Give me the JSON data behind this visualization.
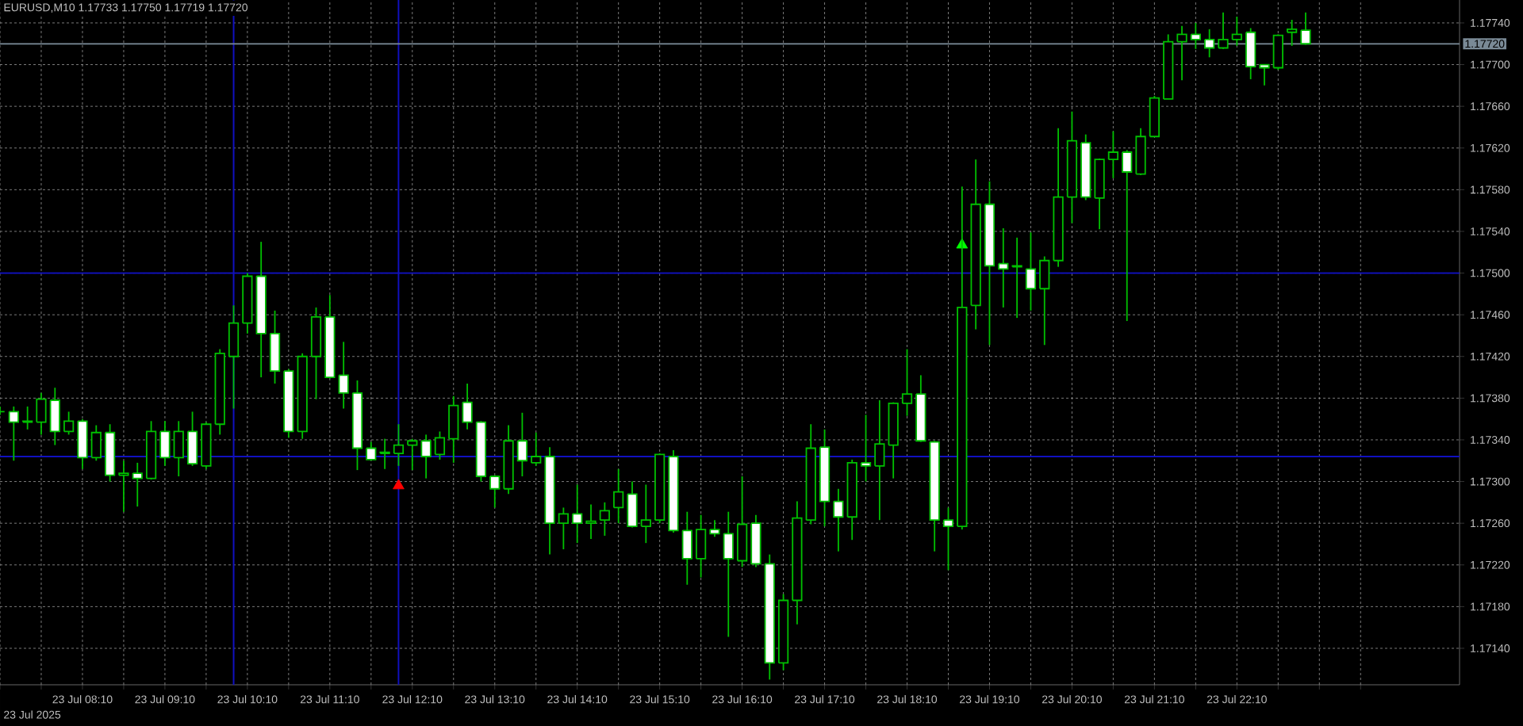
{
  "chart_data": {
    "type": "candlestick",
    "title": "EURUSD,M10  1.17733 1.17750 1.17719 1.17720",
    "color": "#00c000",
    "grid": true,
    "xlim": [
      "2025-07-23T07:10",
      "2025-07-24T00:52"
    ],
    "ylim": [
      1.17105,
      1.17762
    ],
    "x": [
      "2025-07-23T07:10",
      "2025-07-23T07:20",
      "2025-07-23T07:30",
      "2025-07-23T07:40",
      "2025-07-23T07:50",
      "2025-07-23T08:00",
      "2025-07-23T08:10",
      "2025-07-23T08:20",
      "2025-07-23T08:30",
      "2025-07-23T08:40",
      "2025-07-23T08:50",
      "2025-07-23T09:00",
      "2025-07-23T09:10",
      "2025-07-23T09:20",
      "2025-07-23T09:30",
      "2025-07-23T09:40",
      "2025-07-23T09:50",
      "2025-07-23T10:00",
      "2025-07-23T10:10",
      "2025-07-23T10:20",
      "2025-07-23T10:30",
      "2025-07-23T10:40",
      "2025-07-23T10:50",
      "2025-07-23T11:00",
      "2025-07-23T11:10",
      "2025-07-23T11:20",
      "2025-07-23T11:30",
      "2025-07-23T11:40",
      "2025-07-23T11:50",
      "2025-07-23T12:00",
      "2025-07-23T12:10",
      "2025-07-23T12:20",
      "2025-07-23T12:30",
      "2025-07-23T12:40",
      "2025-07-23T12:50",
      "2025-07-23T13:00",
      "2025-07-23T13:10",
      "2025-07-23T13:20",
      "2025-07-23T13:30",
      "2025-07-23T13:40",
      "2025-07-23T13:50",
      "2025-07-23T14:00",
      "2025-07-23T14:10",
      "2025-07-23T14:20",
      "2025-07-23T14:30",
      "2025-07-23T14:40",
      "2025-07-23T14:50",
      "2025-07-23T15:00",
      "2025-07-23T15:10",
      "2025-07-23T15:20",
      "2025-07-23T15:30",
      "2025-07-23T15:40",
      "2025-07-23T15:50",
      "2025-07-23T16:00",
      "2025-07-23T16:10",
      "2025-07-23T16:20",
      "2025-07-23T16:30",
      "2025-07-23T16:40",
      "2025-07-23T16:50",
      "2025-07-23T17:00",
      "2025-07-23T17:10",
      "2025-07-23T17:20",
      "2025-07-23T17:30",
      "2025-07-23T17:40",
      "2025-07-23T17:50",
      "2025-07-23T18:00",
      "2025-07-23T18:10",
      "2025-07-23T18:20",
      "2025-07-23T18:30",
      "2025-07-23T18:40",
      "2025-07-23T18:50",
      "2025-07-23T19:00",
      "2025-07-23T19:10",
      "2025-07-23T19:20",
      "2025-07-23T19:30",
      "2025-07-23T19:40",
      "2025-07-23T19:50",
      "2025-07-23T20:00",
      "2025-07-23T20:10",
      "2025-07-23T20:20",
      "2025-07-23T20:30",
      "2025-07-23T20:40",
      "2025-07-23T20:50",
      "2025-07-23T21:00",
      "2025-07-23T21:10",
      "2025-07-23T21:20",
      "2025-07-23T21:30",
      "2025-07-23T21:40",
      "2025-07-23T21:50",
      "2025-07-23T22:00",
      "2025-07-23T22:10",
      "2025-07-23T22:20",
      "2025-07-23T22:30",
      "2025-07-23T22:40",
      "2025-07-23T22:50",
      "2025-07-23T23:00"
    ],
    "ohlc": [
      [
        1.17367,
        1.17372,
        1.17364,
        1.17367
      ],
      [
        1.17367,
        1.17372,
        1.1732,
        1.17357
      ],
      [
        1.17357,
        1.17372,
        1.1735,
        1.17358
      ],
      [
        1.17357,
        1.17385,
        1.17345,
        1.17379
      ],
      [
        1.17378,
        1.1739,
        1.17335,
        1.17348
      ],
      [
        1.17348,
        1.17367,
        1.17345,
        1.17358
      ],
      [
        1.17358,
        1.1736,
        1.17312,
        1.17323
      ],
      [
        1.17323,
        1.17354,
        1.1732,
        1.17347
      ],
      [
        1.17347,
        1.17355,
        1.173,
        1.17306
      ],
      [
        1.17306,
        1.1732,
        1.17271,
        1.17308
      ],
      [
        1.17308,
        1.17318,
        1.17276,
        1.17303
      ],
      [
        1.17303,
        1.17358,
        1.17302,
        1.17348
      ],
      [
        1.17348,
        1.17358,
        1.17315,
        1.17323
      ],
      [
        1.17323,
        1.17358,
        1.17305,
        1.17348
      ],
      [
        1.17348,
        1.17367,
        1.17315,
        1.17317
      ],
      [
        1.17315,
        1.17357,
        1.17312,
        1.17355
      ],
      [
        1.17355,
        1.17427,
        1.17345,
        1.17423
      ],
      [
        1.1742,
        1.17469,
        1.1737,
        1.17452
      ],
      [
        1.17452,
        1.175,
        1.17442,
        1.17497
      ],
      [
        1.17497,
        1.1753,
        1.174,
        1.17442
      ],
      [
        1.17442,
        1.17464,
        1.17394,
        1.17406
      ],
      [
        1.17406,
        1.17408,
        1.17342,
        1.17348
      ],
      [
        1.17348,
        1.17423,
        1.17341,
        1.1742
      ],
      [
        1.1742,
        1.17467,
        1.17379,
        1.17458
      ],
      [
        1.17458,
        1.17479,
        1.17399,
        1.174
      ],
      [
        1.17402,
        1.17434,
        1.1737,
        1.17385
      ],
      [
        1.17385,
        1.17397,
        1.17311,
        1.17332
      ],
      [
        1.17332,
        1.17338,
        1.1732,
        1.17321
      ],
      [
        1.17327,
        1.17341,
        1.17312,
        1.17328
      ],
      [
        1.17327,
        1.17355,
        1.17315,
        1.17335
      ],
      [
        1.17335,
        1.17341,
        1.17311,
        1.17339
      ],
      [
        1.17339,
        1.17345,
        1.17303,
        1.17324
      ],
      [
        1.17326,
        1.17348,
        1.17321,
        1.17342
      ],
      [
        1.17341,
        1.17382,
        1.17318,
        1.17373
      ],
      [
        1.17376,
        1.17394,
        1.1735,
        1.17357
      ],
      [
        1.17357,
        1.17358,
        1.173,
        1.17305
      ],
      [
        1.17305,
        1.17306,
        1.17275,
        1.17293
      ],
      [
        1.17293,
        1.17354,
        1.17288,
        1.17339
      ],
      [
        1.17339,
        1.17366,
        1.17305,
        1.1732
      ],
      [
        1.17318,
        1.17347,
        1.17315,
        1.17324
      ],
      [
        1.17324,
        1.17333,
        1.1723,
        1.1726
      ],
      [
        1.1726,
        1.17275,
        1.17235,
        1.17269
      ],
      [
        1.17269,
        1.17297,
        1.17241,
        1.1726
      ],
      [
        1.1726,
        1.17278,
        1.17245,
        1.17262
      ],
      [
        1.17263,
        1.1728,
        1.17248,
        1.17272
      ],
      [
        1.17275,
        1.17312,
        1.1726,
        1.1729
      ],
      [
        1.17288,
        1.173,
        1.17256,
        1.17257
      ],
      [
        1.17257,
        1.17297,
        1.17241,
        1.17263
      ],
      [
        1.17263,
        1.17327,
        1.1726,
        1.17326
      ],
      [
        1.17324,
        1.1733,
        1.17251,
        1.17253
      ],
      [
        1.17253,
        1.17271,
        1.17201,
        1.17226
      ],
      [
        1.17226,
        1.17268,
        1.17208,
        1.17254
      ],
      [
        1.17254,
        1.17263,
        1.17247,
        1.1725
      ],
      [
        1.1725,
        1.17271,
        1.17151,
        1.17226
      ],
      [
        1.17224,
        1.17305,
        1.17218,
        1.17259
      ],
      [
        1.1726,
        1.17268,
        1.17218,
        1.17221
      ],
      [
        1.17221,
        1.1723,
        1.1711,
        1.17126
      ],
      [
        1.17126,
        1.17192,
        1.17119,
        1.17186
      ],
      [
        1.17186,
        1.17281,
        1.17163,
        1.17265
      ],
      [
        1.17263,
        1.17355,
        1.17259,
        1.17332
      ],
      [
        1.17333,
        1.1735,
        1.17257,
        1.17281
      ],
      [
        1.17281,
        1.17293,
        1.17233,
        1.17266
      ],
      [
        1.17266,
        1.17321,
        1.17244,
        1.17318
      ],
      [
        1.17318,
        1.17364,
        1.173,
        1.17315
      ],
      [
        1.17315,
        1.17378,
        1.17263,
        1.17336
      ],
      [
        1.17335,
        1.17376,
        1.17303,
        1.17375
      ],
      [
        1.17375,
        1.17427,
        1.17363,
        1.17384
      ],
      [
        1.17384,
        1.17402,
        1.17338,
        1.17339
      ],
      [
        1.17338,
        1.17339,
        1.17233,
        1.17263
      ],
      [
        1.17263,
        1.17275,
        1.17215,
        1.17257
      ],
      [
        1.17257,
        1.17583,
        1.17254,
        1.17467
      ],
      [
        1.17469,
        1.17609,
        1.17446,
        1.17566
      ],
      [
        1.17566,
        1.17588,
        1.17431,
        1.17507
      ],
      [
        1.17509,
        1.17543,
        1.17467,
        1.17504
      ],
      [
        1.17506,
        1.17534,
        1.17457,
        1.17507
      ],
      [
        1.17504,
        1.17539,
        1.17464,
        1.17485
      ],
      [
        1.17485,
        1.17516,
        1.17431,
        1.17512
      ],
      [
        1.17512,
        1.17639,
        1.17506,
        1.17573
      ],
      [
        1.17573,
        1.17655,
        1.17548,
        1.17627
      ],
      [
        1.17625,
        1.17633,
        1.1757,
        1.17573
      ],
      [
        1.17572,
        1.1761,
        1.17542,
        1.17609
      ],
      [
        1.17609,
        1.17636,
        1.17591,
        1.17616
      ],
      [
        1.17616,
        1.17618,
        1.17454,
        1.17597
      ],
      [
        1.17595,
        1.17639,
        1.17594,
        1.17631
      ],
      [
        1.17631,
        1.1767,
        1.17631,
        1.17668
      ],
      [
        1.17667,
        1.17729,
        1.17667,
        1.17722
      ],
      [
        1.17722,
        1.17737,
        1.17685,
        1.17729
      ],
      [
        1.17729,
        1.1774,
        1.17715,
        1.17724
      ],
      [
        1.17724,
        1.17734,
        1.17707,
        1.17716
      ],
      [
        1.17716,
        1.1775,
        1.17715,
        1.17724
      ],
      [
        1.17724,
        1.17746,
        1.17718,
        1.17729
      ],
      [
        1.17731,
        1.17735,
        1.17686,
        1.17698
      ],
      [
        1.177,
        1.177,
        1.1768,
        1.17697
      ],
      [
        1.17697,
        1.17729,
        1.17695,
        1.17728
      ],
      [
        1.17731,
        1.17743,
        1.17718,
        1.17734
      ],
      [
        1.17733,
        1.1775,
        1.17719,
        1.1772
      ]
    ],
    "series": [
      {
        "type": "scatter",
        "x": [
          "2025-07-23T12:00"
        ],
        "values": [
          1.17296
        ],
        "color": "#ff0000",
        "marker": "triangle"
      },
      {
        "type": "scatter",
        "x": [
          "2025-07-23T18:50"
        ],
        "values": [
          1.17527
        ],
        "color": "#00ff00",
        "marker": "triangle"
      }
    ],
    "ref_lines": [
      {
        "axis": "x",
        "value": "2025-07-23T10:00",
        "color": "#1010c0"
      },
      {
        "axis": "x",
        "value": "2025-07-23T12:00",
        "color": "#1010c0"
      },
      {
        "axis": "y",
        "value": 1.175,
        "color": "#1010c0"
      },
      {
        "axis": "y",
        "value": 1.17324,
        "color": "#1010c0"
      },
      {
        "axis": "y",
        "value": 1.1772,
        "color": "#7a8a96",
        "label": "1.17720"
      }
    ],
    "annotations": [
      "23 Jul 2025"
    ],
    "xticks": [
      {
        "value": "2025-07-23T07:10",
        "label": null
      },
      {
        "value": "2025-07-23T07:40",
        "label": null
      },
      {
        "value": "2025-07-23T08:10",
        "label": "23 Jul 08:10"
      },
      {
        "value": "2025-07-23T08:40",
        "label": null
      },
      {
        "value": "2025-07-23T09:10",
        "label": "23 Jul 09:10"
      },
      {
        "value": "2025-07-23T09:40",
        "label": null
      },
      {
        "value": "2025-07-23T10:10",
        "label": "23 Jul 10:10"
      },
      {
        "value": "2025-07-23T10:40",
        "label": null
      },
      {
        "value": "2025-07-23T11:10",
        "label": "23 Jul 11:10"
      },
      {
        "value": "2025-07-23T11:40",
        "label": null
      },
      {
        "value": "2025-07-23T12:10",
        "label": "23 Jul 12:10"
      },
      {
        "value": "2025-07-23T12:40",
        "label": null
      },
      {
        "value": "2025-07-23T13:10",
        "label": "23 Jul 13:10"
      },
      {
        "value": "2025-07-23T13:40",
        "label": null
      },
      {
        "value": "2025-07-23T14:10",
        "label": "23 Jul 14:10"
      },
      {
        "value": "2025-07-23T14:40",
        "label": null
      },
      {
        "value": "2025-07-23T15:10",
        "label": "23 Jul 15:10"
      },
      {
        "value": "2025-07-23T15:40",
        "label": null
      },
      {
        "value": "2025-07-23T16:10",
        "label": "23 Jul 16:10"
      },
      {
        "value": "2025-07-23T16:40",
        "label": null
      },
      {
        "value": "2025-07-23T17:10",
        "label": "23 Jul 17:10"
      },
      {
        "value": "2025-07-23T17:40",
        "label": null
      },
      {
        "value": "2025-07-23T18:10",
        "label": "23 Jul 18:10"
      },
      {
        "value": "2025-07-23T18:40",
        "label": null
      },
      {
        "value": "2025-07-23T19:10",
        "label": "23 Jul 19:10"
      },
      {
        "value": "2025-07-23T19:40",
        "label": null
      },
      {
        "value": "2025-07-23T20:10",
        "label": "23 Jul 20:10"
      },
      {
        "value": "2025-07-23T20:40",
        "label": null
      },
      {
        "value": "2025-07-23T21:10",
        "label": "23 Jul 21:10"
      },
      {
        "value": "2025-07-23T21:40",
        "label": null
      },
      {
        "value": "2025-07-23T22:10",
        "label": "23 Jul 22:10"
      },
      {
        "value": "2025-07-23T22:40",
        "label": null
      },
      {
        "value": "2025-07-23T23:10",
        "label": null
      },
      {
        "value": "2025-07-23T23:40",
        "label": null
      }
    ],
    "yticks": [
      {
        "value": 1.1714,
        "label": "1.17140"
      },
      {
        "value": 1.1718,
        "label": "1.17180"
      },
      {
        "value": 1.1722,
        "label": "1.17220"
      },
      {
        "value": 1.1726,
        "label": "1.17260"
      },
      {
        "value": 1.173,
        "label": "1.17300"
      },
      {
        "value": 1.1734,
        "label": "1.17340"
      },
      {
        "value": 1.1738,
        "label": "1.17380"
      },
      {
        "value": 1.1742,
        "label": "1.17420"
      },
      {
        "value": 1.1746,
        "label": "1.17460"
      },
      {
        "value": 1.175,
        "label": "1.17500"
      },
      {
        "value": 1.1754,
        "label": "1.17540"
      },
      {
        "value": 1.1758,
        "label": "1.17580"
      },
      {
        "value": 1.1762,
        "label": "1.17620"
      },
      {
        "value": 1.1766,
        "label": "1.17660"
      },
      {
        "value": 1.177,
        "label": "1.17700"
      },
      {
        "value": 1.1774,
        "label": "1.17740"
      }
    ]
  }
}
